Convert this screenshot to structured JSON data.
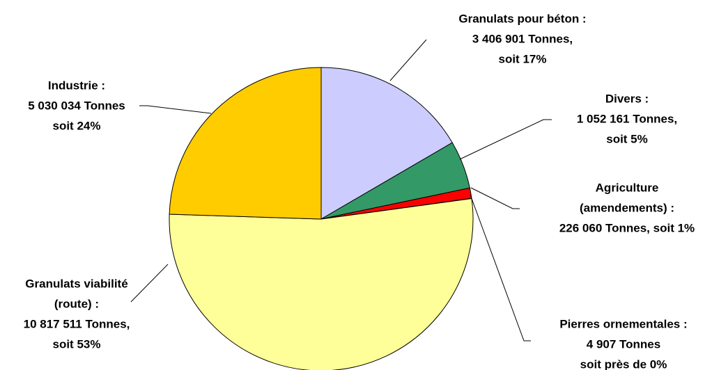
{
  "chart_data": {
    "type": "pie",
    "labels": [
      [
        "Granulats pour béton :",
        "3 406 901 Tonnes,",
        "soit 17%"
      ],
      [
        "Divers :",
        "1 052 161 Tonnes,",
        "soit 5%"
      ],
      [
        "Agriculture",
        "(amendements) :",
        "226 060 Tonnes, soit 1%"
      ],
      [
        "Pierres ornementales :",
        "4 907 Tonnes",
        "soit près de 0%"
      ],
      [
        "Granulats viabilité",
        "(route) :",
        "10 817 511 Tonnes,",
        "soit  53%"
      ],
      [
        "Industrie :",
        "5 030 034 Tonnes",
        "soit 24%"
      ]
    ],
    "values": [
      3406901,
      1052161,
      226060,
      4907,
      10817511,
      5030034
    ],
    "colors": [
      "#ccccff",
      "#339966",
      "#ff0000",
      "#ccccff",
      "#ffff99",
      "#ffcc00"
    ]
  }
}
